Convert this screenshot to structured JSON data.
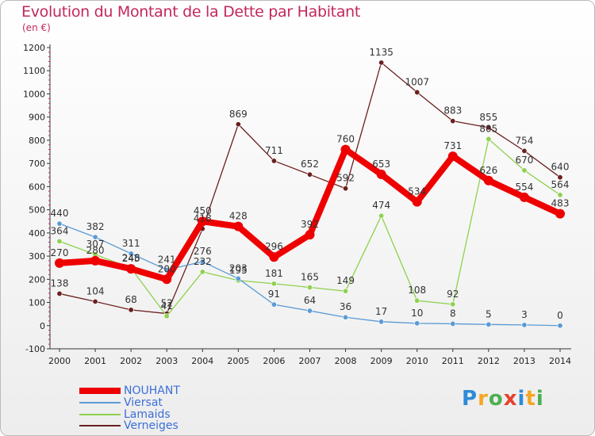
{
  "header": {
    "title": "Evolution du Montant de la Dette par Habitant",
    "subtitle": "(en €)"
  },
  "logo": {
    "text": "Proxiti",
    "colors": [
      "#2e8bd8",
      "#f5a623",
      "#4caf50",
      "#e8412c",
      "#2e8bd8",
      "#f5a623",
      "#4caf50"
    ]
  },
  "chart_data": {
    "type": "line",
    "x": [
      "2000",
      "2001",
      "2002",
      "2003",
      "2004",
      "2005",
      "2006",
      "2007",
      "2008",
      "2009",
      "2010",
      "2011",
      "2012",
      "2013",
      "2014"
    ],
    "ylim": [
      -100,
      1200
    ],
    "yticks": [
      -100,
      0,
      100,
      200,
      300,
      400,
      500,
      600,
      700,
      800,
      900,
      1000,
      1100,
      1200
    ],
    "grid": false,
    "legend_position": "bottom-left",
    "series": [
      {
        "name": "NOUHANT",
        "color": "#ee0000",
        "values": [
          270,
          280,
          245,
          200,
          450,
          428,
          296,
          392,
          760,
          653,
          534,
          731,
          626,
          554,
          483
        ]
      },
      {
        "name": "Viersat",
        "color": "#5b9bd5",
        "values": [
          440,
          382,
          311,
          241,
          276,
          203,
          91,
          64,
          36,
          17,
          10,
          8,
          5,
          3,
          0
        ]
      },
      {
        "name": "Lamaids",
        "color": "#8fd14f",
        "values": [
          364,
          307,
          248,
          41,
          232,
          195,
          181,
          165,
          149,
          474,
          108,
          92,
          805,
          670,
          564
        ]
      },
      {
        "name": "Verneiges",
        "color": "#6b1f1f",
        "values": [
          138,
          104,
          68,
          52,
          418,
          869,
          711,
          652,
          592,
          1135,
          1007,
          883,
          855,
          754,
          640
        ]
      }
    ]
  }
}
